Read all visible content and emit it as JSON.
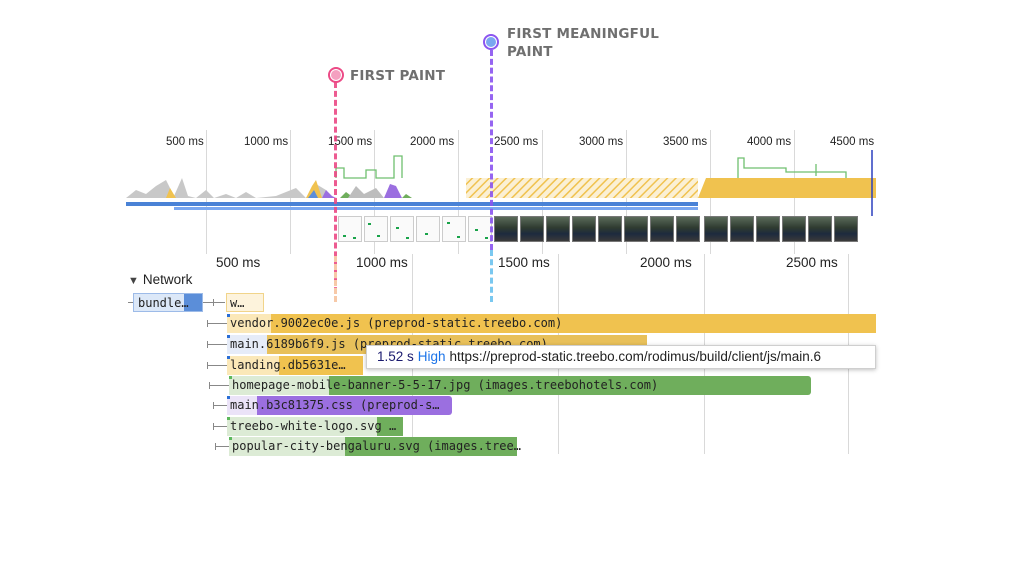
{
  "markers": {
    "first_paint": {
      "label": "FIRST PAINT",
      "color": "#ec4a86",
      "line_color": "#f4a0c0"
    },
    "first_meaningful_paint": {
      "label_line1": "FIRST MEANINGFUL",
      "label_line2": "PAINT",
      "color": "#8b55f0",
      "line_color": "#7aa7f0"
    }
  },
  "overview_ruler": [
    "500 ms",
    "1000 ms",
    "1500 ms",
    "2000 ms",
    "2500 ms",
    "3000 ms",
    "3500 ms",
    "4000 ms",
    "4500 ms"
  ],
  "main_ruler": [
    "500 ms",
    "1000 ms",
    "1500 ms",
    "2000 ms",
    "2500 ms"
  ],
  "network": {
    "header": "Network",
    "toggle_icon": "triangle-down-icon",
    "requests": [
      {
        "label": "bundle…",
        "color": "#5b8ed9"
      },
      {
        "label": "w…",
        "color": "#f1d48a"
      },
      {
        "label": "vendor.9002ec0e.js (preprod-static.treebo.com)",
        "color": "#f0c24f"
      },
      {
        "label": "main.6189b6f9.js (preprod-static.treebo.com)",
        "color": "#f0c24f"
      },
      {
        "label": "landing.db5631e…",
        "color": "#f0c24f"
      },
      {
        "label": "homepage-mobile-banner-5-5-17.jpg (images.treebohotels.com)",
        "color": "#6fae5c"
      },
      {
        "label": "main.b3c81375.css (preprod-s…",
        "color": "#9b6fe0"
      },
      {
        "label": "treebo-white-logo.svg …",
        "color": "#6fae5c"
      },
      {
        "label": "popular-city-bengaluru.svg (images.tree…",
        "color": "#6fae5c"
      }
    ]
  },
  "tooltip": {
    "time": "1.52 s",
    "priority": "High",
    "url": "https://preprod-static.treebo.com/rodimus/build/client/js/main.6"
  }
}
